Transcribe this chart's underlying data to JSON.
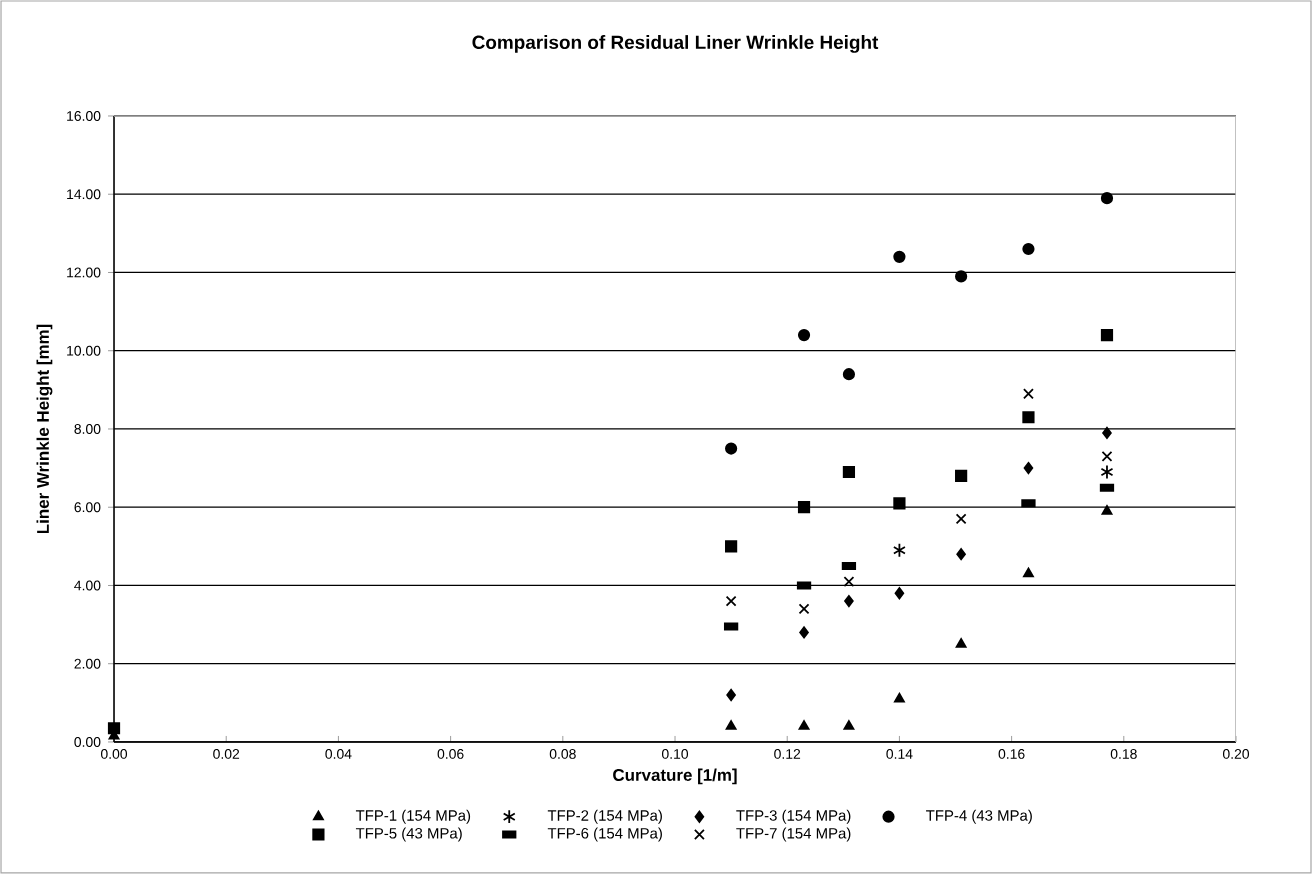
{
  "chart_data": {
    "type": "scatter",
    "title": "Comparison of Residual Liner Wrinkle Height",
    "xlabel": "Curvature [1/m]",
    "ylabel": "Liner Wrinkle Height [mm]",
    "xlim": [
      0,
      0.2
    ],
    "ylim": [
      0,
      16
    ],
    "xticks": [
      {
        "value": 0,
        "label": "0.00"
      },
      {
        "value": 0.02,
        "label": "0.02"
      },
      {
        "value": 0.04,
        "label": "0.04"
      },
      {
        "value": 0.06,
        "label": "0.06"
      },
      {
        "value": 0.08,
        "label": "0.08"
      },
      {
        "value": 0.1,
        "label": "0.10"
      },
      {
        "value": 0.12,
        "label": "0.12"
      },
      {
        "value": 0.14,
        "label": "0.14"
      },
      {
        "value": 0.16,
        "label": "0.16"
      },
      {
        "value": 0.18,
        "label": "0.18"
      },
      {
        "value": 0.2,
        "label": "0.20"
      }
    ],
    "yticks": [
      {
        "value": 0,
        "label": "0.00"
      },
      {
        "value": 2,
        "label": "2.00"
      },
      {
        "value": 4,
        "label": "4.00"
      },
      {
        "value": 6,
        "label": "6.00"
      },
      {
        "value": 8,
        "label": "8.00"
      },
      {
        "value": 10,
        "label": "10.00"
      },
      {
        "value": 12,
        "label": "12.00"
      },
      {
        "value": 14,
        "label": "14.00"
      },
      {
        "value": 16,
        "label": "16.00"
      }
    ],
    "grid": "y",
    "legend": "bottom",
    "series": [
      {
        "name": "TFP-1 (154 MPa)",
        "color": "#000000",
        "marker": "triangle",
        "x": [
          0,
          0.11,
          0.123,
          0.131,
          0.14,
          0.151,
          0.163,
          0.177
        ],
        "values": [
          0.15,
          0.4,
          0.4,
          0.4,
          1.1,
          2.5,
          4.3,
          5.9
        ]
      },
      {
        "name": "TFP-2 (154 MPa)",
        "color": "#000000",
        "marker": "cross",
        "x": [
          0.14,
          0.177
        ],
        "values": [
          4.9,
          6.9
        ]
      },
      {
        "name": "TFP-3 (154 MPa)",
        "color": "#000000",
        "marker": "diamond",
        "x": [
          0.11,
          0.123,
          0.131,
          0.14,
          0.151,
          0.163,
          0.177
        ],
        "values": [
          1.2,
          2.8,
          3.6,
          3.8,
          4.8,
          7.0,
          7.9
        ]
      },
      {
        "name": "TFP-4 (43 MPa)",
        "color": "#000000",
        "marker": "circle",
        "x": [
          0.11,
          0.123,
          0.131,
          0.14,
          0.151,
          0.163,
          0.177
        ],
        "values": [
          7.5,
          10.4,
          9.4,
          12.4,
          11.9,
          12.6,
          13.9
        ]
      },
      {
        "name": "TFP-5 (43 MPa)",
        "color": "#000000",
        "marker": "square",
        "x": [
          0,
          0.11,
          0.123,
          0.131,
          0.14,
          0.151,
          0.163,
          0.177
        ],
        "values": [
          0.35,
          5.0,
          6.0,
          6.9,
          6.1,
          6.8,
          8.3,
          10.4
        ]
      },
      {
        "name": "TFP-6 (154 MPa)",
        "color": "#000000",
        "x": [
          0.11,
          0.123,
          0.131,
          0.163,
          0.177
        ],
        "values": [
          2.95,
          4.0,
          4.5,
          6.1,
          6.5
        ]
      },
      {
        "name": "TFP-7 (154 MPa)",
        "color": "#000000",
        "marker": "cross",
        "x": [
          0.11,
          0.123,
          0.131,
          0.151,
          0.163,
          0.177
        ],
        "values": [
          3.6,
          3.4,
          4.1,
          5.7,
          8.9,
          7.3
        ]
      }
    ]
  }
}
